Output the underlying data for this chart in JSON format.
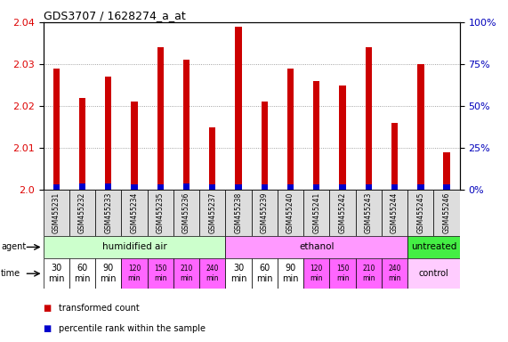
{
  "title": "GDS3707 / 1628274_a_at",
  "samples": [
    "GSM455231",
    "GSM455232",
    "GSM455233",
    "GSM455234",
    "GSM455235",
    "GSM455236",
    "GSM455237",
    "GSM455238",
    "GSM455239",
    "GSM455240",
    "GSM455241",
    "GSM455242",
    "GSM455243",
    "GSM455244",
    "GSM455245",
    "GSM455246"
  ],
  "transformed_count": [
    2.029,
    2.022,
    2.027,
    2.021,
    2.034,
    2.031,
    2.015,
    2.039,
    2.021,
    2.029,
    2.026,
    2.025,
    2.034,
    2.016,
    2.03,
    2.009
  ],
  "percentile_rank": [
    3,
    4,
    4,
    3,
    3,
    4,
    3,
    3,
    3,
    3,
    3,
    3,
    3,
    3,
    3,
    3
  ],
  "ylim_left": [
    2.0,
    2.04
  ],
  "ylim_right": [
    0,
    100
  ],
  "yticks_left": [
    2.0,
    2.01,
    2.02,
    2.03,
    2.04
  ],
  "yticks_right": [
    0,
    25,
    50,
    75,
    100
  ],
  "ytick_labels_right": [
    "0%",
    "25%",
    "50%",
    "75%",
    "100%"
  ],
  "bar_color": "#cc0000",
  "percentile_color": "#0000cc",
  "grid_color": "#888888",
  "agent_groups": [
    {
      "label": "humidified air",
      "start": 0,
      "end": 7,
      "color": "#ccffcc"
    },
    {
      "label": "ethanol",
      "start": 7,
      "end": 14,
      "color": "#ff99ff"
    },
    {
      "label": "untreated",
      "start": 14,
      "end": 16,
      "color": "#44ee44"
    }
  ],
  "time_colors": [
    "#ffffff",
    "#ffffff",
    "#ffffff",
    "#ff66ff",
    "#ff66ff",
    "#ff66ff",
    "#ff66ff",
    "#ffffff",
    "#ffffff",
    "#ffffff",
    "#ff66ff",
    "#ff66ff",
    "#ff66ff",
    "#ff66ff"
  ],
  "time_labels": [
    "30\nmin",
    "60\nmin",
    "90\nmin",
    "120\nmin",
    "150\nmin",
    "210\nmin",
    "240\nmin",
    "30\nmin",
    "60\nmin",
    "90\nmin",
    "120\nmin",
    "150\nmin",
    "210\nmin",
    "240\nmin"
  ],
  "control_bg": "#ffccff",
  "legend_items": [
    {
      "color": "#cc0000",
      "label": "transformed count"
    },
    {
      "color": "#0000cc",
      "label": "percentile rank within the sample"
    }
  ],
  "bg_color": "#ffffff",
  "tick_color_left": "#dd0000",
  "tick_color_right": "#0000bb",
  "xlabel_agent": "agent",
  "xlabel_time": "time"
}
